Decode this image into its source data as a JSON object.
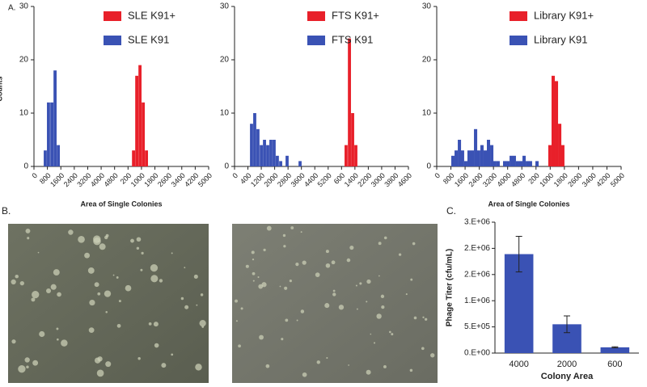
{
  "panel_b_label": "B.",
  "chart_data": [
    {
      "type": "histogram",
      "panel": "A.",
      "ylabel": "Counts",
      "xlabel": "Area of Single Colonies",
      "categories": [
        "0",
        "800",
        "1600",
        "2400",
        "3200",
        "4000",
        "4800",
        "200",
        "1000",
        "1800",
        "2600",
        "3400",
        "4200",
        "5000"
      ],
      "ylim": [
        0,
        30
      ],
      "yticks": [
        0,
        10,
        20,
        30
      ],
      "series": [
        {
          "name": "SLE K91+",
          "color": "#e8202a",
          "x": [
            7.41,
            7.65,
            7.89,
            8.13,
            8.37
          ],
          "values": [
            3,
            17,
            19,
            12,
            3
          ]
        },
        {
          "name": "SLE K91",
          "color": "#3a52b4",
          "x": [
            0.84,
            1.08,
            1.33,
            1.57,
            1.81
          ],
          "values": [
            3,
            12,
            12,
            18,
            4
          ]
        }
      ]
    },
    {
      "type": "histogram",
      "categories": [
        "0",
        "400",
        "1200",
        "2000",
        "2800",
        "3600",
        "4400",
        "5200",
        "600",
        "1400",
        "2200",
        "3000",
        "3800",
        "4600"
      ],
      "ylim": [
        0,
        30
      ],
      "yticks": [
        0,
        10,
        20,
        30
      ],
      "series": [
        {
          "name": "FTS K91+",
          "color": "#e8202a",
          "x": [
            8.34,
            8.59,
            8.83,
            9.07
          ],
          "values": [
            4,
            24,
            10,
            4
          ]
        },
        {
          "name": "FTS K91",
          "color": "#3a52b4",
          "x": [
            1.27,
            1.51,
            1.75,
            2.0,
            2.24,
            2.48,
            2.72,
            2.96,
            3.2,
            3.45,
            3.93,
            4.9
          ],
          "values": [
            8,
            10,
            7,
            4,
            5,
            4,
            5,
            5,
            2,
            1,
            2,
            1
          ]
        }
      ]
    },
    {
      "type": "histogram",
      "xlabel": "Area of Single Colonies",
      "categories": [
        "0",
        "800",
        "1600",
        "2400",
        "3200",
        "4000",
        "4800",
        "200",
        "1000",
        "1800",
        "2600",
        "3400",
        "4200",
        "5000"
      ],
      "ylim": [
        0,
        30
      ],
      "yticks": [
        0,
        10,
        20,
        30
      ],
      "series": [
        {
          "name": "Library K91+",
          "color": "#e8202a",
          "x": [
            7.98,
            8.21,
            8.44,
            8.67,
            8.89
          ],
          "values": [
            4,
            17,
            16,
            8,
            4
          ]
        },
        {
          "name": "Library K91",
          "color": "#3a52b4",
          "x": [
            1.14,
            1.37,
            1.6,
            1.82,
            2.05,
            2.28,
            2.51,
            2.74,
            2.96,
            3.19,
            3.42,
            3.65,
            3.88,
            4.1,
            4.33,
            4.79,
            5.02,
            5.25,
            5.47,
            5.7,
            5.93,
            6.16,
            6.39,
            6.61,
            7.07
          ],
          "values": [
            2,
            3,
            5,
            3,
            1,
            3,
            3,
            7,
            3,
            4,
            3,
            5,
            4,
            1,
            1,
            1,
            1,
            2,
            2,
            1,
            1,
            2,
            1,
            1,
            1
          ]
        }
      ]
    },
    {
      "type": "bar",
      "panel": "C.",
      "ylabel": "Phage Titer (cfu/mL)",
      "xlabel": "Colony Area",
      "categories": [
        "4000",
        "2000",
        "600"
      ],
      "values": [
        1890000,
        550000,
        110000
      ],
      "errors": [
        340000,
        160000,
        10000
      ],
      "color": "#3a52b4",
      "ylim": [
        0,
        2500000
      ],
      "yticks": [
        {
          "value": 0,
          "label": "0.E+00"
        },
        {
          "value": 500000,
          "label": "5.E+05"
        },
        {
          "value": 1000000,
          "label": "1.E+06"
        },
        {
          "value": 1500000,
          "label": "2.E+06"
        },
        {
          "value": 2000000,
          "label": "2.E+06"
        },
        {
          "value": 2500000,
          "label": "3.E+06"
        }
      ]
    }
  ]
}
